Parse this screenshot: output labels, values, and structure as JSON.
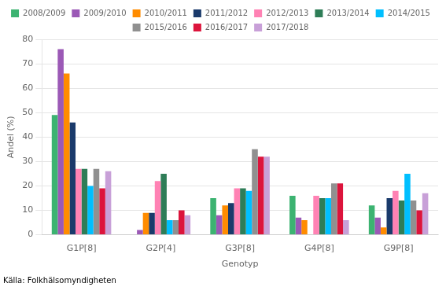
{
  "chart_data": {
    "type": "bar",
    "xlabel": "Genotyp",
    "ylabel": "Andel (%)",
    "annotations": [
      "Källa: Folkhälsomyndigheten"
    ],
    "categories": [
      "G1P[8]",
      "G2P[4]",
      "G3P[8]",
      "G4P[8]",
      "G9P[8]"
    ],
    "series": [
      {
        "name": "2008/2009",
        "color": "#3cb371",
        "values": [
          49,
          0,
          15,
          16,
          12
        ]
      },
      {
        "name": "2009/2010",
        "color": "#9b59b6",
        "values": [
          76,
          2,
          8,
          7,
          7
        ]
      },
      {
        "name": "2010/2011",
        "color": "#ff8c00",
        "values": [
          66,
          9,
          12,
          6,
          3
        ]
      },
      {
        "name": "2011/2012",
        "color": "#1a3a6b",
        "values": [
          46,
          9,
          13,
          0,
          15
        ]
      },
      {
        "name": "2012/2013",
        "color": "#ff82b4",
        "values": [
          27,
          22,
          19,
          16,
          18
        ]
      },
      {
        "name": "2013/2014",
        "color": "#2e7d57",
        "values": [
          27,
          25,
          19,
          15,
          14
        ]
      },
      {
        "name": "2014/2015",
        "color": "#00bfff",
        "values": [
          20,
          6,
          18,
          15,
          25
        ]
      },
      {
        "name": "2015/2016",
        "color": "#909090",
        "values": [
          27,
          6,
          35,
          21,
          14
        ]
      },
      {
        "name": "2016/2017",
        "color": "#dc143c",
        "values": [
          19,
          10,
          32,
          21,
          10
        ]
      },
      {
        "name": "2017/2018",
        "color": "#c8a0d8",
        "values": [
          26,
          8,
          32,
          6,
          17
        ]
      }
    ],
    "ylim": [
      0,
      80
    ],
    "yticks": [
      0,
      10,
      20,
      30,
      40,
      50,
      60,
      70,
      80
    ],
    "grid": true,
    "legend": "top"
  }
}
